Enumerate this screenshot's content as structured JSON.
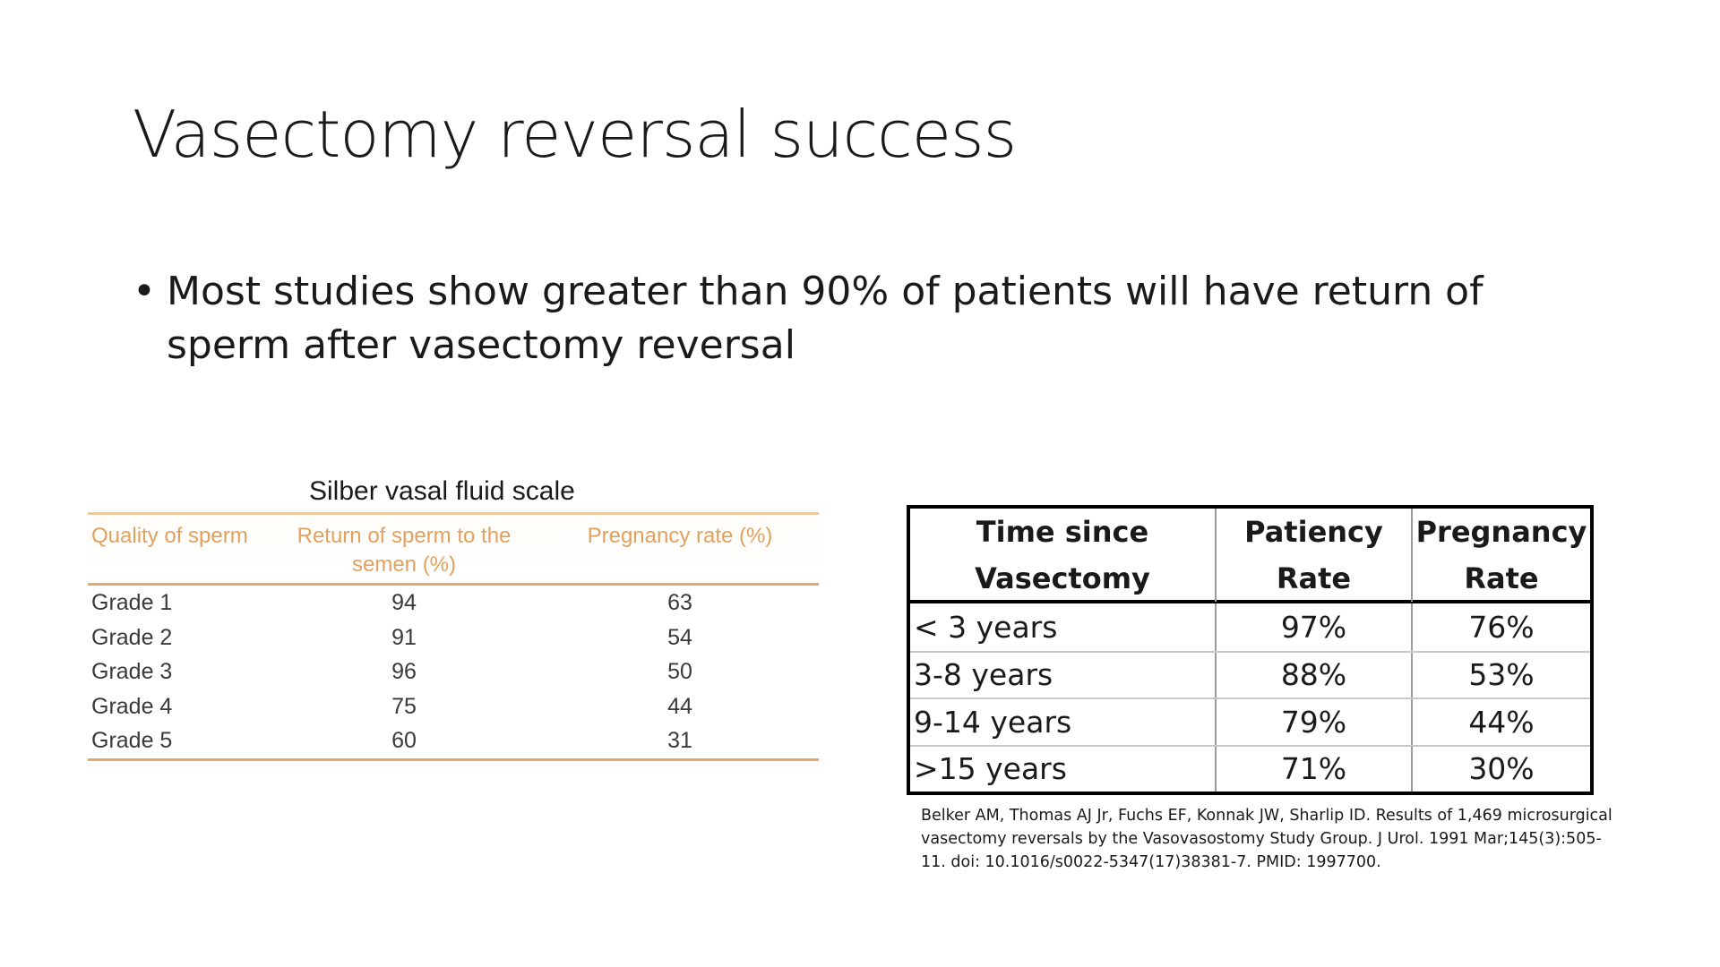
{
  "slide": {
    "title": "Vasectomy reversal success",
    "bullet": {
      "symbol": "•",
      "text": "Most studies show greater than 90% of patients will have return of sperm after vasectomy reversal"
    }
  },
  "silber_table": {
    "caption": "Silber vasal fluid scale",
    "headers": [
      "Quality of sperm",
      "Return of sperm to the semen (%)",
      "Pregnancy rate (%)"
    ],
    "rows": [
      [
        "Grade 1",
        "94",
        "63"
      ],
      [
        "Grade 2",
        "91",
        "54"
      ],
      [
        "Grade 3",
        "96",
        "50"
      ],
      [
        "Grade 4",
        "75",
        "44"
      ],
      [
        "Grade 5",
        "60",
        "31"
      ]
    ],
    "header_color": "#e0a160"
  },
  "belker_table": {
    "headers": [
      "Time since Vasectomy",
      "Patiency Rate",
      "Pregnancy Rate"
    ],
    "rows": [
      [
        "< 3 years",
        "97%",
        "76%"
      ],
      [
        "3-8 years",
        "88%",
        "53%"
      ],
      [
        "9-14 years",
        "79%",
        "44%"
      ],
      [
        ">15 years",
        "71%",
        "30%"
      ]
    ],
    "citation": "Belker AM, Thomas AJ Jr, Fuchs EF, Konnak JW, Sharlip ID. Results of 1,469 microsurgical vasectomy reversals by the Vasovasostomy Study Group. J Urol. 1991 Mar;145(3):505-11. doi: 10.1016/s0022-5347(17)38381-7. PMID: 1997700."
  }
}
